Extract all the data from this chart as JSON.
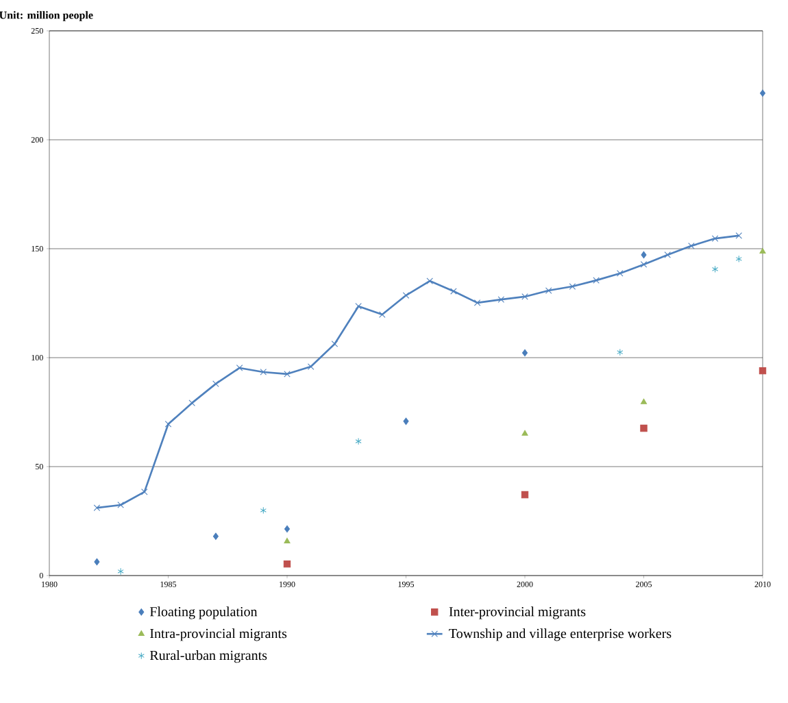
{
  "chart_data": {
    "type": "scatter",
    "ylabel": "Unit: million people",
    "xlim": [
      1980,
      2010
    ],
    "xticks": [
      1980,
      1985,
      1990,
      1995,
      2000,
      2005,
      2010
    ],
    "ylim": [
      0,
      250
    ],
    "yticks": [
      0,
      50,
      100,
      150,
      200,
      250
    ],
    "grid": "y",
    "legend": "bottom",
    "series": [
      {
        "name": "Floating population",
        "marker": "diamond",
        "color": "#4a7ebb",
        "x": [
          1982,
          1987,
          1990,
          1995,
          2000,
          2005,
          2010
        ],
        "values": [
          6.3,
          18,
          21.4,
          70.8,
          102.2,
          147.2,
          221.4
        ]
      },
      {
        "name": "Inter-provincial migrants",
        "marker": "square",
        "color": "#c0504d",
        "x": [
          1990,
          2000,
          2005,
          2010
        ],
        "values": [
          5.3,
          37.1,
          67.6,
          94
        ]
      },
      {
        "name": "Intra-provincial migrants",
        "marker": "triangle",
        "color": "#9bbb59",
        "x": [
          1990,
          2000,
          2005,
          2010
        ],
        "values": [
          15.7,
          65.1,
          79.6,
          148.7
        ]
      },
      {
        "name": "Township and village enterprise workers",
        "type": "line",
        "marker": "cross",
        "line_style": "solid",
        "color": "#4f81bd",
        "x": [
          1982,
          1983,
          1984,
          1985,
          1986,
          1987,
          1988,
          1989,
          1990,
          1991,
          1992,
          1993,
          1994,
          1995,
          1996,
          1997,
          1998,
          1999,
          2000,
          2001,
          2002,
          2003,
          2004,
          2005,
          2006,
          2007,
          2008,
          2009
        ],
        "values": [
          31.1,
          32.4,
          38.4,
          69.5,
          79.2,
          88,
          95.3,
          93.4,
          92.5,
          95.9,
          106.3,
          123.6,
          119.8,
          128.6,
          135.2,
          130.5,
          125.2,
          126.7,
          128,
          130.8,
          132.7,
          135.5,
          138.7,
          142.8,
          147.2,
          151.3,
          154.7,
          156
        ]
      },
      {
        "name": "Rural-urban migrants",
        "marker": "cross",
        "color": "#4bacc6",
        "x": [
          1983,
          1989,
          1993,
          2004,
          2008,
          2009
        ],
        "values": [
          1.9,
          29.9,
          61.6,
          102.5,
          140.6,
          145.3
        ]
      }
    ]
  }
}
